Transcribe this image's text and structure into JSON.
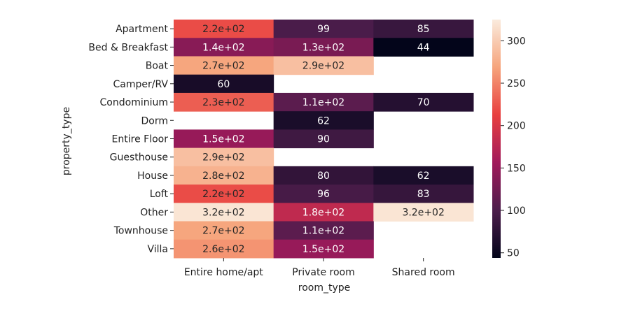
{
  "chart_data": {
    "type": "heatmap",
    "title": "",
    "xlabel": "room_type",
    "ylabel": "property_type",
    "x_categories": [
      "Entire home/apt",
      "Private room",
      "Shared room"
    ],
    "y_categories": [
      "Apartment",
      "Bed & Breakfast",
      "Boat",
      "Camper/RV",
      "Condominium",
      "Dorm",
      "Entire Floor",
      "Guesthouse",
      "House",
      "Loft",
      "Other",
      "Townhouse",
      "Villa"
    ],
    "values": [
      [
        220,
        99,
        85
      ],
      [
        140,
        130,
        44
      ],
      [
        270,
        290,
        null
      ],
      [
        60,
        null,
        null
      ],
      [
        230,
        110,
        70
      ],
      [
        null,
        62,
        null
      ],
      [
        150,
        90,
        null
      ],
      [
        290,
        null,
        null
      ],
      [
        280,
        80,
        62
      ],
      [
        220,
        96,
        83
      ],
      [
        320,
        180,
        320
      ],
      [
        270,
        110,
        null
      ],
      [
        260,
        150,
        null
      ]
    ],
    "annotations": [
      [
        "2.2e+02",
        "99",
        "85"
      ],
      [
        "1.4e+02",
        "1.3e+02",
        "44"
      ],
      [
        "2.7e+02",
        "2.9e+02",
        ""
      ],
      [
        "60",
        "",
        ""
      ],
      [
        "2.3e+02",
        "1.1e+02",
        "70"
      ],
      [
        "",
        "62",
        ""
      ],
      [
        "1.5e+02",
        "90",
        ""
      ],
      [
        "2.9e+02",
        "",
        ""
      ],
      [
        "2.8e+02",
        "80",
        "62"
      ],
      [
        "2.2e+02",
        "96",
        "83"
      ],
      [
        "3.2e+02",
        "1.8e+02",
        "3.2e+02"
      ],
      [
        "2.7e+02",
        "1.1e+02",
        ""
      ],
      [
        "2.6e+02",
        "1.5e+02",
        ""
      ]
    ],
    "colorbar": {
      "min": 44,
      "max": 325,
      "ticks": [
        50,
        100,
        150,
        200,
        250,
        300
      ],
      "colormap": "rocket",
      "stops": [
        "#03051a",
        "#4c1d4b",
        "#a11a5b",
        "#e83f3f",
        "#f6a47c",
        "#faebdd"
      ]
    }
  }
}
